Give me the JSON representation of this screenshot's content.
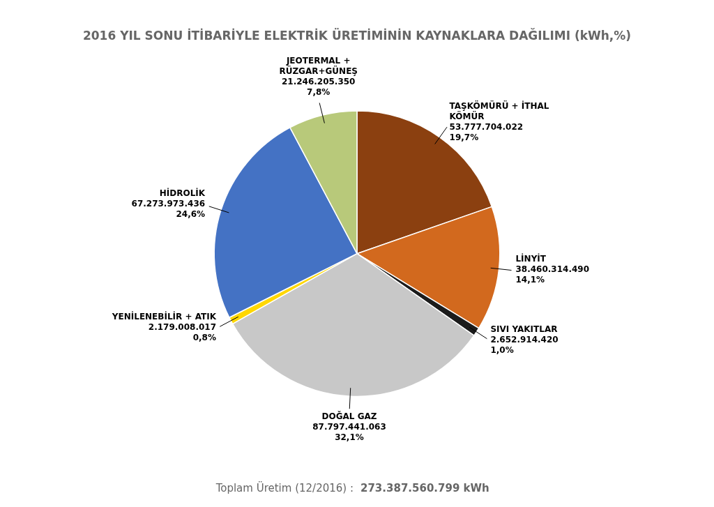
{
  "chart_data": {
    "type": "pie",
    "title": "2016 YIL SONU İTİBARİYLE ELEKTRİK ÜRETİMİNİN KAYNAKLARA DAĞILIMI (kWh,%)",
    "categories": [
      "TAŞKÖMÜRÜ + İTHAL\nKÖMÜR",
      "LİNYİT",
      "SIVI YAKITLAR",
      "DOĞAL GAZ",
      "YENİLENEBİLİR + ATIK",
      "HİDROLİK",
      "JEOTERMAL +\nRÜZGAR+GÜNEŞ"
    ],
    "values": [
      53777704022,
      38460314490,
      2652914420,
      87797441063,
      2179008017,
      67273973436,
      21246205350
    ],
    "value_labels": [
      "53.777.704.022",
      "38.460.314.490",
      "2.652.914.420",
      "87.797.441.063",
      "2.179.008.017",
      "67.273.973.436",
      "21.246.205.350"
    ],
    "shares": [
      19.7,
      14.1,
      1.0,
      32.1,
      0.8,
      24.6,
      7.8
    ],
    "share_labels": [
      "19,7%",
      "14,1%",
      "1,0%",
      "32,1%",
      "0,8%",
      "24,6%",
      "7,8%"
    ],
    "colors": [
      "#8B4010",
      "#D2691E",
      "#1C1C1C",
      "#C8C8C8",
      "#FFD700",
      "#4472C4",
      "#B8C97A"
    ],
    "data_labels": true,
    "footer": [
      "Toplam Üretim (12/2016) :",
      "273.387.560.799 kWh"
    ]
  }
}
